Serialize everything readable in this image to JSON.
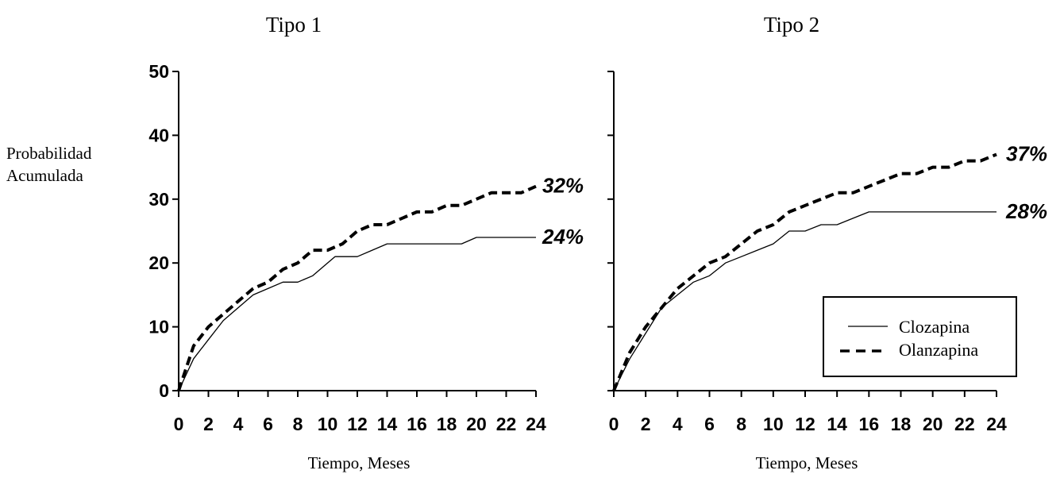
{
  "y_axis_title": [
    "Probabilidad",
    "Acumulada"
  ],
  "legend": {
    "items": [
      {
        "label": "Clozapina",
        "style": "solid"
      },
      {
        "label": "Olanzapina",
        "style": "dashed"
      }
    ]
  },
  "chart_data": [
    {
      "type": "line",
      "title": "Tipo 1",
      "xlabel": "Tiempo, Meses",
      "ylabel": "Probabilidad Acumulada",
      "xlim": [
        0,
        24
      ],
      "ylim": [
        0,
        50
      ],
      "xticks": [
        0,
        2,
        4,
        6,
        8,
        10,
        12,
        14,
        16,
        18,
        20,
        22,
        24
      ],
      "yticks": [
        0,
        10,
        20,
        30,
        40,
        50
      ],
      "grid": false,
      "series": [
        {
          "name": "Clozapina",
          "style": "solid",
          "x": [
            0,
            1,
            2,
            3,
            4,
            5,
            6,
            7,
            8,
            9,
            10,
            10.5,
            11,
            12,
            13,
            14,
            15,
            16,
            17,
            18,
            19,
            20,
            21,
            22,
            23,
            24
          ],
          "y": [
            0,
            5,
            8,
            11,
            13,
            15,
            16,
            17,
            17,
            18,
            20,
            21,
            21,
            21,
            22,
            23,
            23,
            23,
            23,
            23,
            23,
            24,
            24,
            24,
            24,
            24
          ],
          "end_label": "24%"
        },
        {
          "name": "Olanzapina",
          "style": "dashed",
          "x": [
            0,
            1,
            2,
            3,
            4,
            5,
            6,
            7,
            8,
            9,
            10,
            11,
            12,
            13,
            14,
            15,
            16,
            17,
            18,
            19,
            20,
            21,
            22,
            23,
            24
          ],
          "y": [
            0,
            7,
            10,
            12,
            14,
            16,
            17,
            19,
            20,
            22,
            22,
            23,
            25,
            26,
            26,
            27,
            28,
            28,
            29,
            29,
            30,
            31,
            31,
            31,
            32
          ],
          "end_label": "32%"
        }
      ]
    },
    {
      "type": "line",
      "title": "Tipo 2",
      "xlabel": "Tiempo, Meses",
      "xlim": [
        0,
        24
      ],
      "ylim": [
        0,
        50
      ],
      "xticks": [
        0,
        2,
        4,
        6,
        8,
        10,
        12,
        14,
        16,
        18,
        20,
        22,
        24
      ],
      "yticks": [
        0,
        10,
        20,
        30,
        40,
        50
      ],
      "grid": false,
      "legend_position": "bottom-right",
      "series": [
        {
          "name": "Clozapina",
          "style": "solid",
          "x": [
            0,
            1,
            2,
            3,
            4,
            5,
            6,
            7,
            8,
            9,
            10,
            11,
            12,
            13,
            14,
            15,
            16,
            17,
            18,
            19,
            20,
            21,
            22,
            23,
            24
          ],
          "y": [
            0,
            5,
            9,
            13,
            15,
            17,
            18,
            20,
            21,
            22,
            23,
            25,
            25,
            26,
            26,
            27,
            28,
            28,
            28,
            28,
            28,
            28,
            28,
            28,
            28
          ],
          "end_label": "28%"
        },
        {
          "name": "Olanzapina",
          "style": "dashed",
          "x": [
            0,
            1,
            2,
            3,
            4,
            5,
            6,
            7,
            8,
            9,
            10,
            11,
            12,
            13,
            14,
            15,
            16,
            17,
            18,
            19,
            20,
            21,
            22,
            23,
            24
          ],
          "y": [
            0,
            6,
            10,
            13,
            16,
            18,
            20,
            21,
            23,
            25,
            26,
            28,
            29,
            30,
            31,
            31,
            32,
            33,
            34,
            34,
            35,
            35,
            36,
            36,
            37
          ],
          "end_label": "37%"
        }
      ]
    }
  ]
}
